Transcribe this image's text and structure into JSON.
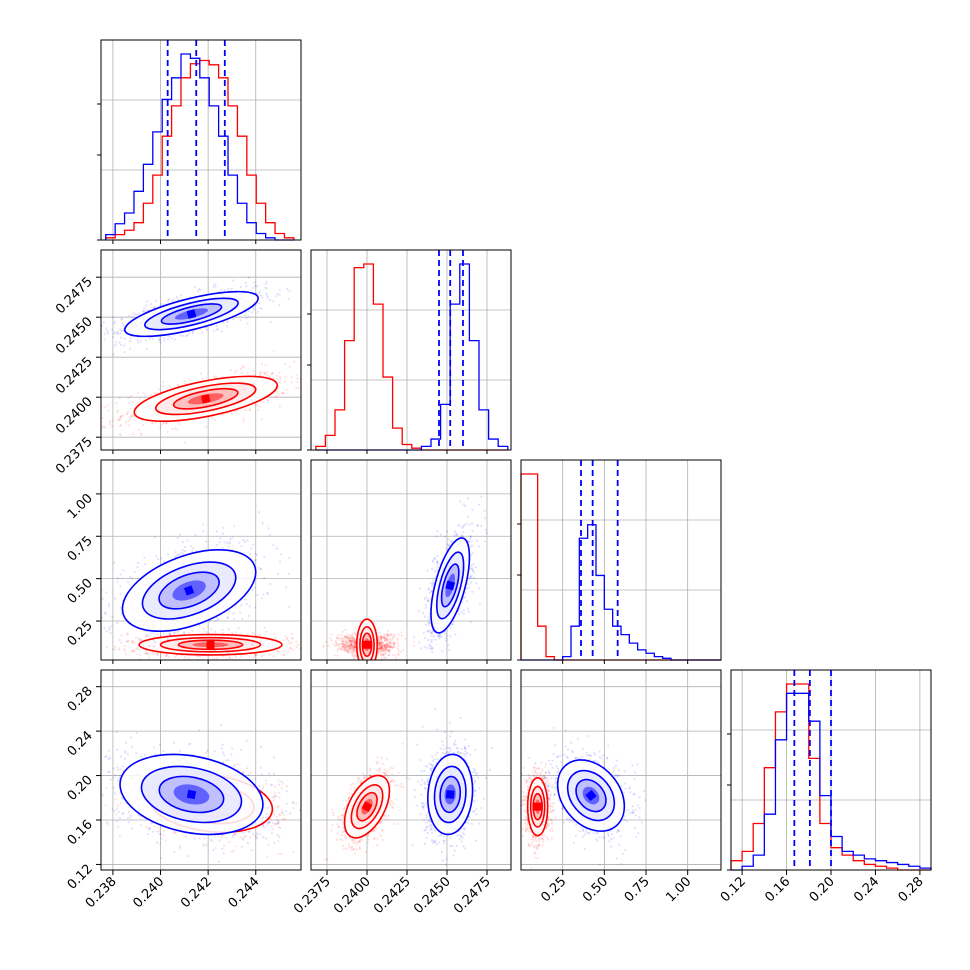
{
  "figure": {
    "type": "corner-plot"
  },
  "colors": {
    "red": "#ff0000",
    "blue": "#0000ff",
    "grid": "#b0b0b0",
    "frame": "#000000"
  },
  "chart_data": [
    {
      "type": "histogram",
      "panel": [
        0,
        0
      ],
      "xlim": [
        0.2375,
        0.2459
      ],
      "series": [
        {
          "color": "red",
          "bins": [
            0.2377,
            0.2456
          ],
          "counts": [
            2,
            5,
            9,
            16,
            34,
            60,
            96,
            124,
            150,
            163,
            166,
            162,
            150,
            124,
            96,
            60,
            34,
            16,
            6,
            2
          ]
        },
        {
          "color": "blue",
          "bins": [
            0.2377,
            0.2456
          ],
          "counts": [
            5,
            15,
            25,
            45,
            70,
            100,
            130,
            150,
            172,
            168,
            150,
            124,
            96,
            60,
            34,
            16,
            6,
            2,
            0,
            0
          ]
        }
      ],
      "quantile_lines": [
        0.2403,
        0.2415,
        0.2427
      ]
    },
    {
      "type": "histogram",
      "panel": [
        1,
        1
      ],
      "xlim": [
        0.2365,
        0.249
      ],
      "series": [
        {
          "color": "red",
          "bins": [
            0.2368,
            0.2488
          ],
          "counts": [
            2,
            8,
            22,
            60,
            100,
            102,
            80,
            40,
            12,
            3,
            1,
            0,
            0,
            0,
            0,
            0,
            0,
            0,
            0,
            0
          ]
        },
        {
          "color": "blue",
          "bins": [
            0.2368,
            0.2488
          ],
          "counts": [
            0,
            0,
            0,
            0,
            0,
            0,
            0,
            0,
            0,
            0,
            0,
            2,
            6,
            25,
            80,
            102,
            60,
            22,
            6,
            2
          ]
        }
      ],
      "quantile_lines": [
        0.2445,
        0.2452,
        0.246
      ]
    },
    {
      "type": "histogram",
      "panel": [
        2,
        2
      ],
      "xlim": [
        0.0,
        1.2
      ],
      "series": [
        {
          "color": "red",
          "bins": [
            0.0,
            1.2
          ],
          "counts": [
            110,
            110,
            20,
            2,
            0,
            0,
            0,
            0,
            0,
            0,
            0,
            0,
            0,
            0,
            0,
            0,
            0,
            0,
            0,
            0,
            0,
            0,
            0,
            0
          ]
        },
        {
          "color": "blue",
          "bins": [
            0.0,
            1.2
          ],
          "counts": [
            0,
            0,
            0,
            0,
            0,
            2,
            20,
            72,
            80,
            50,
            30,
            20,
            15,
            10,
            6,
            4,
            2,
            1,
            0,
            0,
            0,
            0,
            0,
            0
          ]
        }
      ],
      "quantile_lines": [
        0.36,
        0.43,
        0.58
      ]
    },
    {
      "type": "histogram",
      "panel": [
        3,
        3
      ],
      "xlim": [
        0.11,
        0.29
      ],
      "series": [
        {
          "color": "red",
          "bins": [
            0.11,
            0.29
          ],
          "counts": [
            5,
            10,
            25,
            55,
            85,
            100,
            100,
            60,
            25,
            12,
            8,
            5,
            3,
            2,
            1,
            0,
            0,
            0
          ]
        },
        {
          "color": "blue",
          "bins": [
            0.11,
            0.29
          ],
          "counts": [
            0,
            2,
            8,
            30,
            70,
            95,
            95,
            80,
            40,
            18,
            10,
            8,
            6,
            5,
            4,
            3,
            2,
            1
          ]
        }
      ],
      "quantile_lines": [
        0.167,
        0.181,
        0.2
      ]
    },
    {
      "type": "scatter-contour",
      "panel": [
        1,
        0
      ],
      "xlim": [
        0.2375,
        0.2459
      ],
      "ylim": [
        0.2367,
        0.2492
      ],
      "series": [
        {
          "color": "red",
          "center": [
            0.2419,
            0.2399
          ],
          "spread": [
            0.0015,
            0.0007
          ],
          "rho": 0.6
        },
        {
          "color": "blue",
          "center": [
            0.2413,
            0.2452
          ],
          "spread": [
            0.0014,
            0.0007
          ],
          "rho": 0.7
        }
      ]
    },
    {
      "type": "scatter-contour",
      "panel": [
        2,
        0
      ],
      "xlim": [
        0.2375,
        0.2459
      ],
      "ylim": [
        0.02,
        1.2
      ],
      "series": [
        {
          "color": "red",
          "center": [
            0.2421,
            0.11
          ],
          "spread": [
            0.0015,
            0.03
          ],
          "rho": 0.0
        },
        {
          "color": "blue",
          "center": [
            0.2412,
            0.43
          ],
          "spread": [
            0.0014,
            0.12
          ],
          "rho": 0.45
        }
      ]
    },
    {
      "type": "scatter-contour",
      "panel": [
        3,
        0
      ],
      "xlim": [
        0.2375,
        0.2459
      ],
      "ylim": [
        0.115,
        0.295
      ],
      "series": [
        {
          "color": "red",
          "center": [
            0.2421,
            0.175
          ],
          "spread": [
            0.0013,
            0.013
          ],
          "rho": -0.2
        },
        {
          "color": "blue",
          "center": [
            0.2413,
            0.183
          ],
          "spread": [
            0.0015,
            0.018
          ],
          "rho": -0.25
        }
      ]
    },
    {
      "type": "scatter-contour",
      "panel": [
        2,
        1
      ],
      "xlim": [
        0.2365,
        0.249
      ],
      "ylim": [
        0.02,
        1.2
      ],
      "series": [
        {
          "color": "red",
          "center": [
            0.24,
            0.11
          ],
          "spread": [
            0.0008,
            0.03
          ],
          "rho": 0.0
        },
        {
          "color": "blue",
          "center": [
            0.2452,
            0.46
          ],
          "spread": [
            0.0006,
            0.14
          ],
          "rho": 0.6
        }
      ]
    },
    {
      "type": "scatter-contour",
      "panel": [
        3,
        1
      ],
      "xlim": [
        0.2365,
        0.249
      ],
      "ylim": [
        0.115,
        0.295
      ],
      "series": [
        {
          "color": "red",
          "center": [
            0.24,
            0.172
          ],
          "spread": [
            0.0007,
            0.014
          ],
          "rho": 0.5
        },
        {
          "color": "blue",
          "center": [
            0.2452,
            0.183
          ],
          "spread": [
            0.0007,
            0.018
          ],
          "rho": 0.1
        }
      ]
    },
    {
      "type": "scatter-contour",
      "panel": [
        3,
        2
      ],
      "xlim": [
        0.0,
        1.2
      ],
      "ylim": [
        0.115,
        0.295
      ],
      "series": [
        {
          "color": "red",
          "center": [
            0.1,
            0.172
          ],
          "spread": [
            0.03,
            0.013
          ],
          "rho": 0.0
        },
        {
          "color": "blue",
          "center": [
            0.42,
            0.182
          ],
          "spread": [
            0.1,
            0.016
          ],
          "rho": -0.3
        }
      ]
    }
  ],
  "axes": {
    "col0_x_ticks": {
      "values": [
        0.238,
        0.24,
        0.242,
        0.244
      ],
      "labels": [
        "0.238",
        "0.240",
        "0.242",
        "0.244"
      ]
    },
    "col1_x_ticks": {
      "values": [
        0.2375,
        0.24,
        0.2425,
        0.245,
        0.2475
      ],
      "labels": [
        "0.2375",
        "0.2400",
        "0.2425",
        "0.2450",
        "0.2475"
      ]
    },
    "col2_x_ticks": {
      "values": [
        0.25,
        0.5,
        0.75,
        1.0
      ],
      "labels": [
        "0.25",
        "0.50",
        "0.75",
        "1.00"
      ]
    },
    "col3_x_ticks": {
      "values": [
        0.12,
        0.16,
        0.2,
        0.24,
        0.28
      ],
      "labels": [
        "0.12",
        "0.16",
        "0.20",
        "0.24",
        "0.28"
      ]
    },
    "row1_y_ticks": {
      "values": [
        0.2375,
        0.24,
        0.2425,
        0.245,
        0.2475
      ],
      "labels": [
        "0.2375",
        "0.2400",
        "0.2425",
        "0.2450",
        "0.2475"
      ]
    },
    "row2_y_ticks": {
      "values": [
        0.25,
        0.5,
        0.75,
        1.0
      ],
      "labels": [
        "0.25",
        "0.50",
        "0.75",
        "1.00"
      ]
    },
    "row3_y_ticks": {
      "values": [
        0.12,
        0.16,
        0.2,
        0.24,
        0.28
      ],
      "labels": [
        "0.12",
        "0.16",
        "0.20",
        "0.24",
        "0.28"
      ]
    }
  }
}
